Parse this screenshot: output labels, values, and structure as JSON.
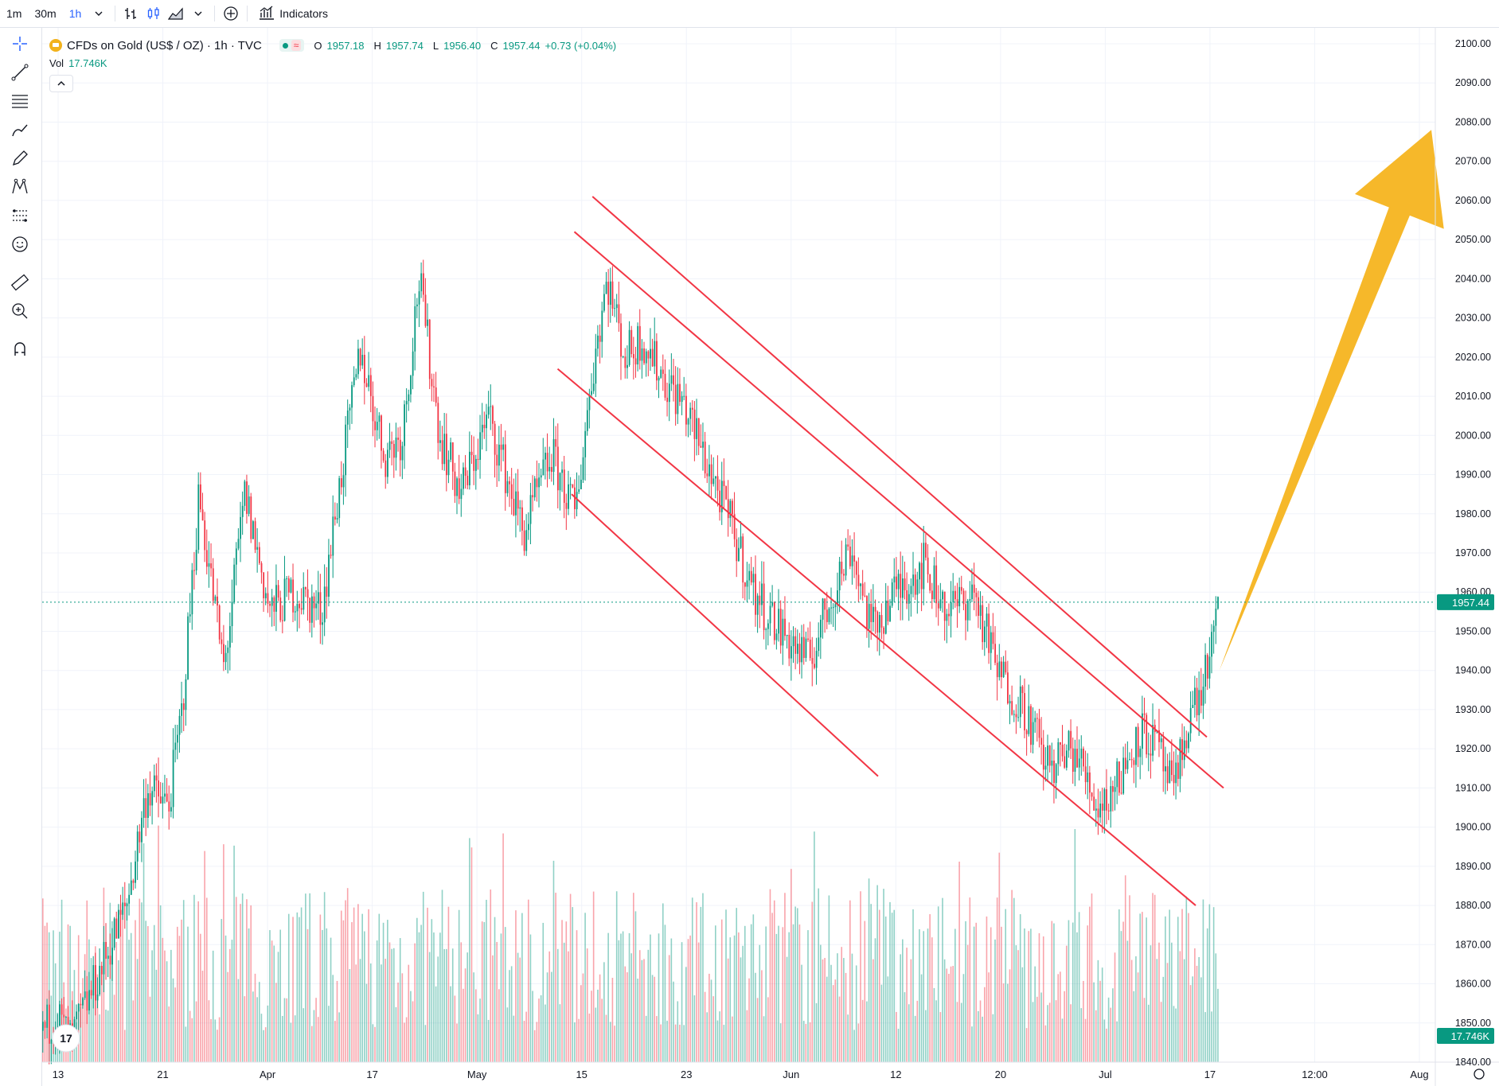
{
  "toolbar": {
    "timeframes": [
      {
        "label": "1m",
        "active": false
      },
      {
        "label": "30m",
        "active": false
      },
      {
        "label": "1h",
        "active": true
      }
    ],
    "indicators_label": "Indicators"
  },
  "legend": {
    "symbol": "CFDs on Gold (US$ / OZ) · 1h · TVC",
    "open_label": "O",
    "open": "1957.18",
    "high_label": "H",
    "high": "1957.74",
    "low_label": "L",
    "low": "1956.40",
    "close_label": "C",
    "close": "1957.44",
    "change": "+0.73 (+0.04%)",
    "vol_label": "Vol",
    "vol": "17.746K"
  },
  "colors": {
    "up": "#089981",
    "down": "#f23645",
    "trendline": "#f23645",
    "arrow": "#f6b82a",
    "grid": "#f0f3fa"
  },
  "price_badge": "1957.44",
  "volume_badge": "17.746K",
  "chart_data": {
    "type": "candlestick",
    "symbol": "CFDs on Gold (US$ / OZ)",
    "interval": "1h",
    "price_axis": [
      "2100.00",
      "2090.00",
      "2080.00",
      "2070.00",
      "2060.00",
      "2050.00",
      "2040.00",
      "2030.00",
      "2020.00",
      "2010.00",
      "2000.00",
      "1990.00",
      "1980.00",
      "1970.00",
      "1960.00",
      "1950.00",
      "1940.00",
      "1930.00",
      "1920.00",
      "1910.00",
      "1900.00",
      "1890.00",
      "1880.00",
      "1870.00",
      "1860.00",
      "1850.00",
      "1840.00"
    ],
    "ylim": [
      1840,
      2100
    ],
    "time_axis": [
      "13",
      "21",
      "Apr",
      "17",
      "May",
      "15",
      "23",
      "Jun",
      "12",
      "20",
      "Jul",
      "17",
      "12:00",
      "Aug"
    ],
    "last_price": 1957.44,
    "price_path": [
      {
        "x": 0.0,
        "y": 1848
      },
      {
        "x": 0.01,
        "y": 1852
      },
      {
        "x": 0.02,
        "y": 1845
      },
      {
        "x": 0.06,
        "y": 1880
      },
      {
        "x": 0.075,
        "y": 1910
      },
      {
        "x": 0.09,
        "y": 1905
      },
      {
        "x": 0.1,
        "y": 1930
      },
      {
        "x": 0.112,
        "y": 1985
      },
      {
        "x": 0.13,
        "y": 1940
      },
      {
        "x": 0.145,
        "y": 1985
      },
      {
        "x": 0.163,
        "y": 1955
      },
      {
        "x": 0.18,
        "y": 1960
      },
      {
        "x": 0.2,
        "y": 1955
      },
      {
        "x": 0.212,
        "y": 1985
      },
      {
        "x": 0.228,
        "y": 2022
      },
      {
        "x": 0.245,
        "y": 1995
      },
      {
        "x": 0.258,
        "y": 2000
      },
      {
        "x": 0.27,
        "y": 2040
      },
      {
        "x": 0.285,
        "y": 2000
      },
      {
        "x": 0.3,
        "y": 1985
      },
      {
        "x": 0.32,
        "y": 2005
      },
      {
        "x": 0.345,
        "y": 1975
      },
      {
        "x": 0.365,
        "y": 1995
      },
      {
        "x": 0.382,
        "y": 1980
      },
      {
        "x": 0.395,
        "y": 2018
      },
      {
        "x": 0.405,
        "y": 2040
      },
      {
        "x": 0.418,
        "y": 2020
      },
      {
        "x": 0.43,
        "y": 2025
      },
      {
        "x": 0.445,
        "y": 2015
      },
      {
        "x": 0.46,
        "y": 2008
      },
      {
        "x": 0.48,
        "y": 1990
      },
      {
        "x": 0.493,
        "y": 1978
      },
      {
        "x": 0.51,
        "y": 1960
      },
      {
        "x": 0.53,
        "y": 1950
      },
      {
        "x": 0.55,
        "y": 1942
      },
      {
        "x": 0.565,
        "y": 1958
      },
      {
        "x": 0.58,
        "y": 1972
      },
      {
        "x": 0.595,
        "y": 1950
      },
      {
        "x": 0.612,
        "y": 1960
      },
      {
        "x": 0.632,
        "y": 1967
      },
      {
        "x": 0.65,
        "y": 1955
      },
      {
        "x": 0.668,
        "y": 1960
      },
      {
        "x": 0.685,
        "y": 1940
      },
      {
        "x": 0.705,
        "y": 1930
      },
      {
        "x": 0.722,
        "y": 1915
      },
      {
        "x": 0.74,
        "y": 1920
      },
      {
        "x": 0.758,
        "y": 1905
      },
      {
        "x": 0.772,
        "y": 1912
      },
      {
        "x": 0.788,
        "y": 1925
      },
      {
        "x": 0.8,
        "y": 1920
      },
      {
        "x": 0.812,
        "y": 1908
      },
      {
        "x": 0.822,
        "y": 1928
      },
      {
        "x": 0.832,
        "y": 1935
      },
      {
        "x": 0.84,
        "y": 1948
      },
      {
        "x": 0.845,
        "y": 1957
      }
    ],
    "annotations": {
      "channel_lines": [
        {
          "from": {
            "x": 0.395,
            "y": 2061
          },
          "to": {
            "x": 0.836,
            "y": 1923
          }
        },
        {
          "from": {
            "x": 0.382,
            "y": 2052
          },
          "to": {
            "x": 0.848,
            "y": 1910
          }
        },
        {
          "from": {
            "x": 0.37,
            "y": 2017
          },
          "to": {
            "x": 0.828,
            "y": 1880
          }
        },
        {
          "from": {
            "x": 0.38,
            "y": 1985
          },
          "to": {
            "x": 0.6,
            "y": 1913
          }
        }
      ],
      "arrow": {
        "from": {
          "x": 0.845,
          "y": 1940
        },
        "to": {
          "x": 1.0,
          "y": 2078
        }
      }
    }
  }
}
